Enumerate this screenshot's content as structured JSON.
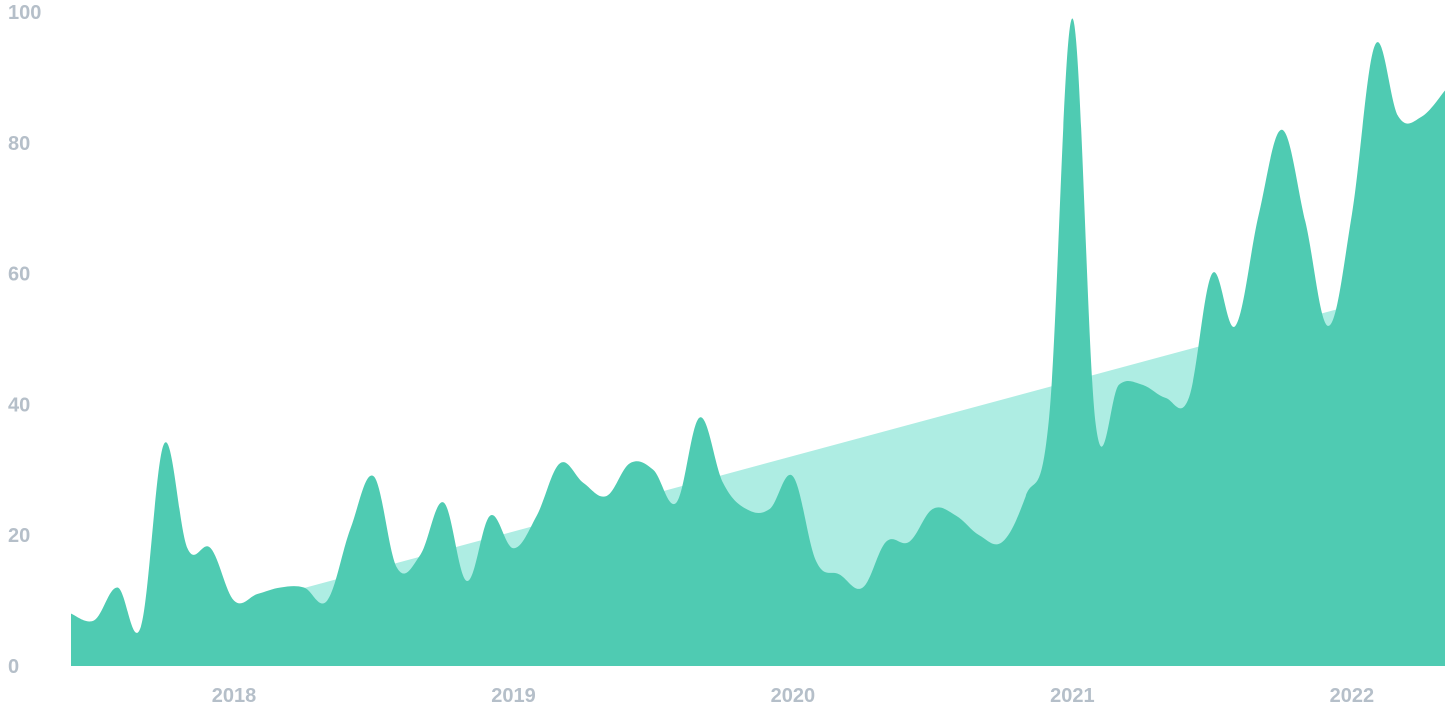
{
  "colors": {
    "series_fill": "#4fcbb2",
    "trend_fill": "#aeede3",
    "tick_text": "#b5bfc9",
    "background": "#ffffff"
  },
  "chart_data": {
    "type": "area",
    "title": "",
    "xlabel": "",
    "ylabel": "",
    "ylim": [
      0,
      100
    ],
    "xlim": [
      "2017-06",
      "2022-05"
    ],
    "grid": false,
    "y_ticks": [
      "0",
      "20",
      "40",
      "60",
      "80",
      "100"
    ],
    "x_ticks": [
      {
        "label": "2018",
        "x": "2018-01"
      },
      {
        "label": "2019",
        "x": "2019-01"
      },
      {
        "label": "2020",
        "x": "2020-01"
      },
      {
        "label": "2021",
        "x": "2021-01"
      },
      {
        "label": "2022",
        "x": "2022-01"
      }
    ],
    "series": [
      {
        "kind": "monthly",
        "x": [
          "2017-06",
          "2017-07",
          "2017-08",
          "2017-09",
          "2017-10",
          "2017-11",
          "2017-12",
          "2018-01",
          "2018-02",
          "2018-03",
          "2018-04",
          "2018-05",
          "2018-06",
          "2018-07",
          "2018-08",
          "2018-09",
          "2018-10",
          "2018-11",
          "2018-12",
          "2019-01",
          "2019-02",
          "2019-03",
          "2019-04",
          "2019-05",
          "2019-06",
          "2019-07",
          "2019-08",
          "2019-09",
          "2019-10",
          "2019-11",
          "2019-12",
          "2020-01",
          "2020-02",
          "2020-03",
          "2020-04",
          "2020-05",
          "2020-06",
          "2020-07",
          "2020-08",
          "2020-09",
          "2020-10",
          "2020-11",
          "2020-12",
          "2021-01",
          "2021-02",
          "2021-03",
          "2021-04",
          "2021-05",
          "2021-06",
          "2021-07",
          "2021-08",
          "2021-09",
          "2021-10",
          "2021-11",
          "2021-12",
          "2022-01",
          "2022-02",
          "2022-03",
          "2022-04",
          "2022-05"
        ],
        "values": [
          8,
          7,
          12,
          6,
          34,
          18,
          18,
          10,
          11,
          12,
          12,
          10,
          21,
          29,
          15,
          17,
          25,
          13,
          23,
          18,
          23,
          31,
          28,
          26,
          31,
          30,
          25,
          38,
          28,
          24,
          24,
          29,
          16,
          14,
          12,
          19,
          19,
          24,
          23,
          20,
          19,
          26,
          38,
          99,
          37,
          43,
          43,
          41,
          41,
          60,
          52,
          69,
          82,
          68,
          52,
          69,
          95,
          84,
          84,
          88
        ]
      },
      {
        "kind": "trend",
        "x": [
          "2018-02",
          "2022-05"
        ],
        "values": [
          10,
          59
        ]
      }
    ]
  }
}
